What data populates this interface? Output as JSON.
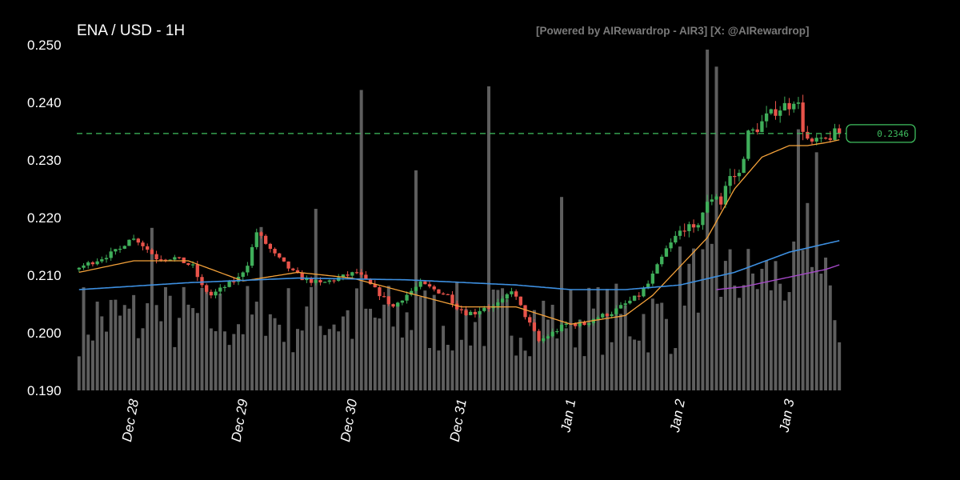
{
  "header": {
    "title": "ENA / USD - 1H",
    "watermark": "[Powered by AIRewardrop - AIR3] [X: @AIRewardrop]"
  },
  "chart_data": {
    "type": "candlestick",
    "symbol": "ENA / USD",
    "interval": "1H",
    "ylim": [
      0.19,
      0.25
    ],
    "y_ticks": [
      "0.190",
      "0.200",
      "0.210",
      "0.220",
      "0.230",
      "0.240",
      "0.250"
    ],
    "x_ticks": [
      "Dec 28",
      "Dec 29",
      "Dec 30",
      "Dec 31",
      "Jan 1",
      "Jan 2",
      "Jan 3"
    ],
    "x_tick_hours": [
      12,
      36,
      60,
      84,
      108,
      132,
      156
    ],
    "total_hours": 168,
    "last_price": 0.2346,
    "last_price_label": "0.2346",
    "grid": false,
    "colors": {
      "up": "#3fae5a",
      "down": "#e8534a",
      "volume": "#6e6e6e",
      "ma_fast": "#f5a23a",
      "ma_mid": "#3d8fe0",
      "ma_slow": "#a649c9",
      "last_price": "#3fbf5f"
    },
    "price_path_hours": [
      0,
      6,
      10,
      12,
      14,
      18,
      22,
      26,
      28,
      30,
      32,
      34,
      36,
      38,
      40,
      42,
      44,
      46,
      48,
      50,
      52,
      54,
      58,
      62,
      66,
      70,
      72,
      76,
      82,
      84,
      86,
      88,
      90,
      92,
      94,
      96,
      98,
      100,
      102,
      104,
      106,
      108,
      112,
      114,
      118,
      120,
      124,
      126,
      130,
      134,
      136,
      138,
      140,
      141,
      142,
      143,
      144,
      146,
      148,
      150,
      152,
      154,
      156,
      157,
      158,
      159,
      160,
      161,
      162,
      163,
      164,
      165,
      167
    ],
    "price_path": [
      0.211,
      0.213,
      0.2145,
      0.2165,
      0.216,
      0.213,
      0.213,
      0.2115,
      0.208,
      0.2065,
      0.2075,
      0.2085,
      0.2095,
      0.212,
      0.2175,
      0.2155,
      0.2135,
      0.212,
      0.2105,
      0.2095,
      0.209,
      0.2085,
      0.2095,
      0.2105,
      0.2075,
      0.2045,
      0.206,
      0.2085,
      0.2065,
      0.2045,
      0.2035,
      0.2035,
      0.2045,
      0.2045,
      0.2055,
      0.2075,
      0.2045,
      0.2015,
      0.1985,
      0.1995,
      0.2005,
      0.2015,
      0.2015,
      0.2025,
      0.2035,
      0.2045,
      0.2065,
      0.2085,
      0.2145,
      0.2185,
      0.2175,
      0.221,
      0.2235,
      0.224,
      0.2225,
      0.2255,
      0.227,
      0.2275,
      0.2345,
      0.2355,
      0.2375,
      0.2385,
      0.2395,
      0.2395,
      0.2405,
      0.2395,
      0.2355,
      0.2335,
      0.2325,
      0.2335,
      0.233,
      0.2335,
      0.2346
    ],
    "volume_peaks_hours": [
      16,
      40,
      52,
      62,
      74,
      90,
      106,
      138,
      140,
      158,
      160,
      162
    ],
    "ma_fast_path_hours": [
      0,
      12,
      24,
      36,
      48,
      60,
      72,
      84,
      96,
      108,
      120,
      126,
      132,
      138,
      144,
      150,
      156,
      160,
      164,
      167
    ],
    "ma_fast_path": [
      0.2105,
      0.2125,
      0.2125,
      0.209,
      0.2105,
      0.2095,
      0.207,
      0.2045,
      0.2045,
      0.2015,
      0.203,
      0.2065,
      0.2115,
      0.2165,
      0.225,
      0.2305,
      0.2325,
      0.2325,
      0.233,
      0.2335
    ],
    "ma_mid_path_hours": [
      0,
      24,
      48,
      72,
      96,
      108,
      120,
      132,
      144,
      156,
      167
    ],
    "ma_mid_path": [
      0.2075,
      0.2087,
      0.2095,
      0.2092,
      0.2083,
      0.2075,
      0.2075,
      0.2083,
      0.2105,
      0.214,
      0.216
    ],
    "ma_slow_path_hours": [
      140,
      146,
      152,
      158,
      164,
      167
    ],
    "ma_slow_path": [
      0.2075,
      0.208,
      0.209,
      0.21,
      0.211,
      0.2118
    ]
  }
}
